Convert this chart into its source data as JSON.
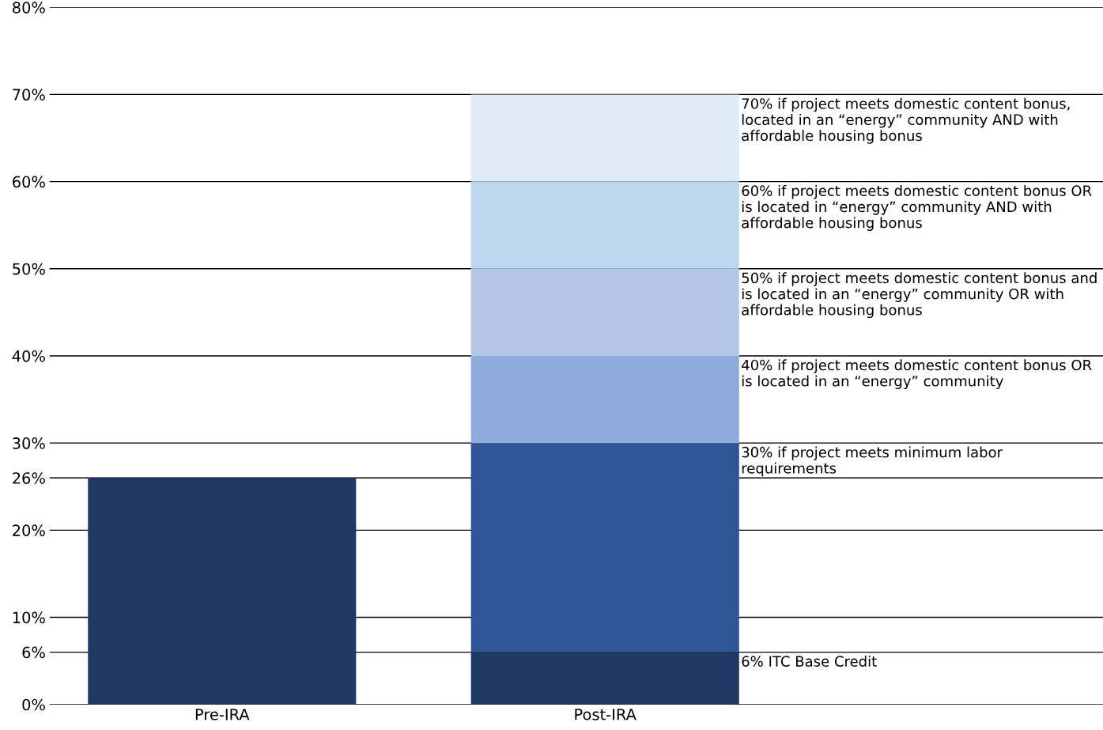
{
  "chart_data": {
    "type": "bar",
    "stacked": true,
    "categories": [
      "Pre-IRA",
      "Post-IRA"
    ],
    "series": [
      {
        "color": "#203864",
        "values": [
          26,
          6
        ]
      },
      {
        "color": "#2f5597",
        "values": [
          null,
          24
        ]
      },
      {
        "color": "#8faadc",
        "values": [
          null,
          10
        ]
      },
      {
        "color": "#b4c7e7",
        "values": [
          null,
          10
        ]
      },
      {
        "color": "#bdd7ee",
        "values": [
          null,
          10
        ]
      },
      {
        "color": "#deebf7",
        "values": [
          null,
          10
        ]
      }
    ],
    "ylim": [
      0,
      80
    ],
    "yticks": [
      {
        "value": 0,
        "label": "0%"
      },
      {
        "value": 6,
        "label": "6%"
      },
      {
        "value": 10,
        "label": "10%"
      },
      {
        "value": 20,
        "label": "20%"
      },
      {
        "value": 26,
        "label": "26%"
      },
      {
        "value": 30,
        "label": "30%"
      },
      {
        "value": 40,
        "label": "40%"
      },
      {
        "value": 50,
        "label": "50%"
      },
      {
        "value": 60,
        "label": "60%"
      },
      {
        "value": 70,
        "label": "70%"
      },
      {
        "value": 80,
        "label": "80%"
      }
    ],
    "grid": "y",
    "annotations": [
      "70% if project meets domestic content bonus, located in an “energy” community AND with affordable housing bonus",
      "60% if project meets domestic content bonus OR is located in “energy” community AND with affordable housing bonus",
      "50% if project meets domestic content bonus and is located in an “energy” community OR with affordable housing bonus",
      "40% if project meets domestic content bonus OR is located in an “energy” community",
      "30% if project meets minimum labor requirements",
      "6% ITC Base Credit"
    ]
  }
}
